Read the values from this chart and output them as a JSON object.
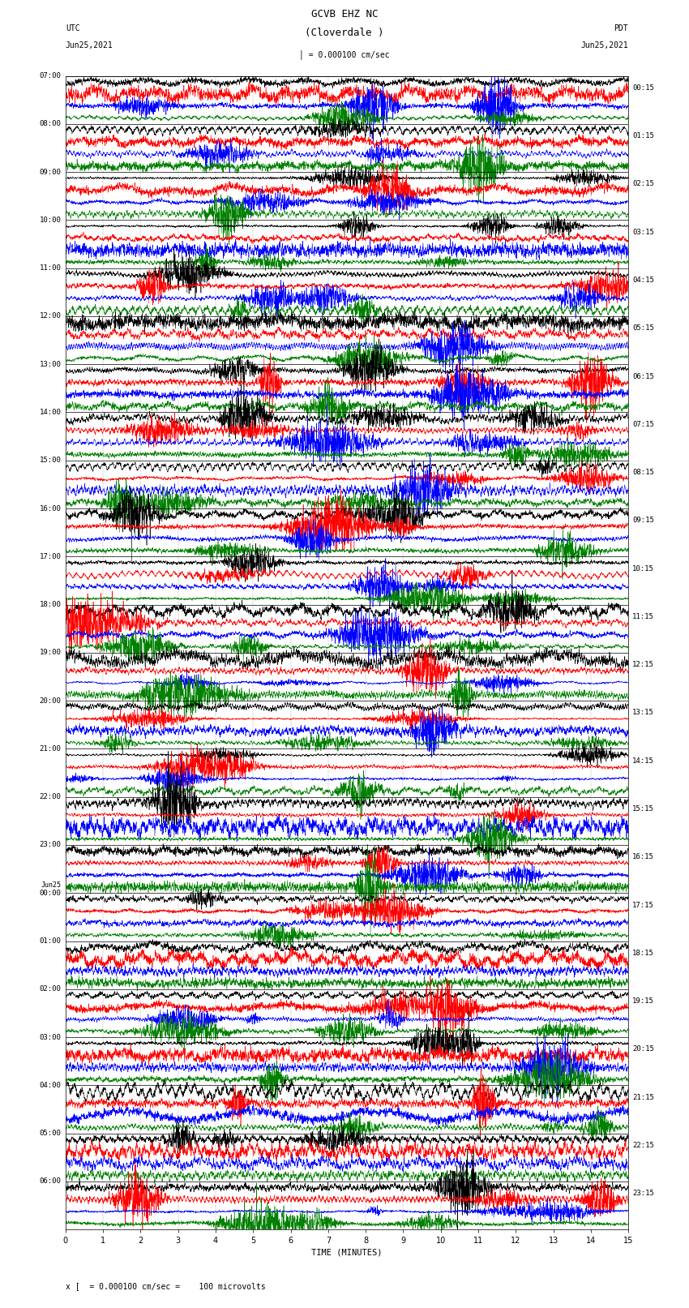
{
  "title_line1": "GCVB EHZ NC",
  "title_line2": "(Cloverdale )",
  "scale_label": "= 0.000100 cm/sec",
  "utc_label1": "UTC",
  "utc_label2": "Jun25,2021",
  "pdt_label1": "PDT",
  "pdt_label2": "Jun25,2021",
  "xlabel": "TIME (MINUTES)",
  "footer": "x [  = 0.000100 cm/sec =    100 microvolts",
  "left_times": [
    "07:00",
    "08:00",
    "09:00",
    "10:00",
    "11:00",
    "12:00",
    "13:00",
    "14:00",
    "15:00",
    "16:00",
    "17:00",
    "18:00",
    "19:00",
    "20:00",
    "21:00",
    "22:00",
    "23:00",
    "Jun25",
    "00:00",
    "01:00",
    "02:00",
    "03:00",
    "04:00",
    "05:00",
    "06:00"
  ],
  "left_times_special": [
    17
  ],
  "right_times": [
    "00:15",
    "01:15",
    "02:15",
    "03:15",
    "04:15",
    "05:15",
    "06:15",
    "07:15",
    "08:15",
    "09:15",
    "10:15",
    "11:15",
    "12:15",
    "13:15",
    "14:15",
    "15:15",
    "16:15",
    "17:15",
    "18:15",
    "19:15",
    "20:15",
    "21:15",
    "22:15",
    "23:15"
  ],
  "n_rows": 24,
  "traces_per_row": 4,
  "colors": [
    "black",
    "red",
    "blue",
    "green"
  ],
  "xmin": 0,
  "xmax": 15,
  "xticks": [
    0,
    1,
    2,
    3,
    4,
    5,
    6,
    7,
    8,
    9,
    10,
    11,
    12,
    13,
    14,
    15
  ],
  "background_color": "white",
  "plot_bg": "white",
  "fig_width": 8.5,
  "fig_height": 16.13,
  "dpi": 100,
  "amplitude": 0.42,
  "n_points": 3000,
  "linewidth": 0.4
}
